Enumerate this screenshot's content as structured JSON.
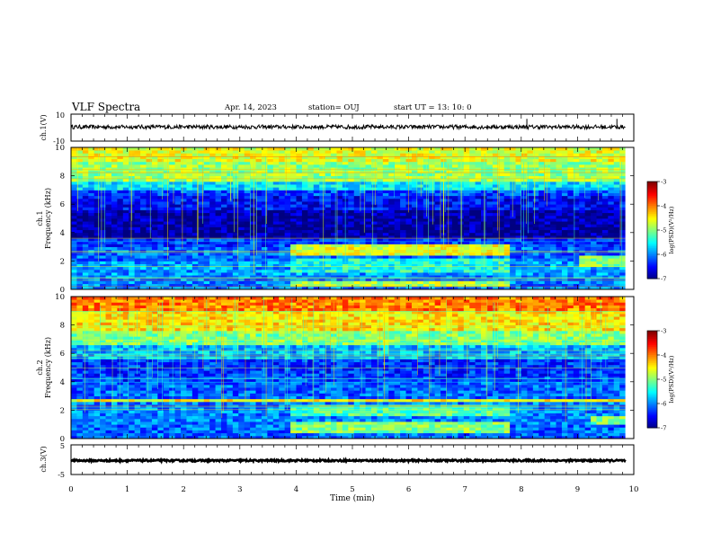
{
  "header": {
    "title": "VLF Spectra",
    "date": "Apr. 14, 2023",
    "station": "station= OUJ",
    "start": "start  UT =   13: 10: 0"
  },
  "chart_data": {
    "type": "heatmap",
    "x": {
      "label": "Time (min)",
      "range": [
        0,
        10
      ],
      "ticks": [
        "0",
        "1",
        "2",
        "3",
        "4",
        "5",
        "6",
        "7",
        "8",
        "9",
        "10"
      ],
      "data_end_min": 9.85
    },
    "panels": [
      {
        "kind": "waveform",
        "ylabel": "ch.1(V)",
        "yrange": [
          -10,
          10
        ],
        "yticks": [
          "10",
          "-10"
        ],
        "baseline": 0.5,
        "amplitude": 1.5,
        "spikes": [
          8.1,
          9.7
        ]
      },
      {
        "kind": "spectrogram",
        "ylabel_line1": "ch.1",
        "ylabel_line2": "Frequency (kHz)",
        "yrange": [
          0,
          10
        ],
        "yticks": [
          "0",
          "2",
          "4",
          "6",
          "8",
          "10"
        ],
        "colorbar": {
          "label": "log(PSD)(V²/Hz)",
          "range": [
            -7,
            -3
          ],
          "ticks": [
            "-3",
            "-4",
            "-5",
            "-6",
            "-7"
          ]
        },
        "bands": [
          {
            "f": [
              9.0,
              10.0
            ],
            "level": -4.6
          },
          {
            "f": [
              7.5,
              9.0
            ],
            "level": -4.9
          },
          {
            "f": [
              7.0,
              7.5
            ],
            "level": -5.6
          },
          {
            "f": [
              6.5,
              7.0
            ],
            "level": -6.2
          },
          {
            "f": [
              5.5,
              6.5
            ],
            "level": -6.5
          },
          {
            "f": [
              4.5,
              5.5
            ],
            "level": -6.85
          },
          {
            "f": [
              3.5,
              4.5
            ],
            "level": -6.9
          },
          {
            "f": [
              3.0,
              3.5
            ],
            "level": -6.3
          },
          {
            "f": [
              2.0,
              3.0
            ],
            "level": -6.1
          },
          {
            "f": [
              1.0,
              2.0
            ],
            "level": -5.9
          },
          {
            "f": [
              0.0,
              1.0
            ],
            "level": -6.0
          }
        ],
        "events": [
          {
            "t": [
              3.9,
              7.8
            ],
            "f": [
              2.4,
              3.2
            ],
            "level": -4.6
          },
          {
            "t": [
              3.9,
              7.8
            ],
            "f": [
              1.2,
              2.2
            ],
            "level": -5.4
          },
          {
            "t": [
              3.9,
              7.8
            ],
            "f": [
              0.2,
              0.6
            ],
            "level": -4.8
          },
          {
            "t": [
              9.0,
              9.85
            ],
            "f": [
              1.5,
              2.4
            ],
            "level": -5.0
          }
        ]
      },
      {
        "kind": "spectrogram",
        "ylabel_line1": "ch.2",
        "ylabel_line2": "Frequency (kHz)",
        "yrange": [
          0,
          10
        ],
        "yticks": [
          "0",
          "2",
          "4",
          "6",
          "8",
          "10"
        ],
        "colorbar": {
          "label": "log(PSD)(V²/Hz)",
          "range": [
            -7,
            -3
          ],
          "ticks": [
            "-3",
            "-4",
            "-5",
            "-6",
            "-7"
          ]
        },
        "bands": [
          {
            "f": [
              9.0,
              10.0
            ],
            "level": -4.0
          },
          {
            "f": [
              7.5,
              9.0
            ],
            "level": -4.4
          },
          {
            "f": [
              6.5,
              7.5
            ],
            "level": -5.0
          },
          {
            "f": [
              5.5,
              6.5
            ],
            "level": -5.8
          },
          {
            "f": [
              4.0,
              5.5
            ],
            "level": -6.3
          },
          {
            "f": [
              2.5,
              4.0
            ],
            "level": -6.1
          },
          {
            "f": [
              1.0,
              2.5
            ],
            "level": -6.0
          },
          {
            "f": [
              0.0,
              1.0
            ],
            "level": -6.1
          }
        ],
        "events": [
          {
            "t": [
              3.9,
              7.8
            ],
            "f": [
              1.5,
              2.4
            ],
            "level": -5.2
          },
          {
            "t": [
              0.0,
              9.85
            ],
            "f": [
              2.6,
              2.8
            ],
            "level": -4.5
          },
          {
            "t": [
              3.9,
              7.8
            ],
            "f": [
              0.4,
              1.2
            ],
            "level": -5.0
          },
          {
            "t": [
              9.2,
              9.85
            ],
            "f": [
              1.0,
              1.6
            ],
            "level": -5.0
          }
        ]
      },
      {
        "kind": "waveform",
        "ylabel": "ch.3(V)",
        "yrange": [
          -5,
          5
        ],
        "yticks": [
          "5",
          "-5"
        ],
        "baseline": -0.3,
        "amplitude": 0.3,
        "spikes": []
      }
    ]
  }
}
